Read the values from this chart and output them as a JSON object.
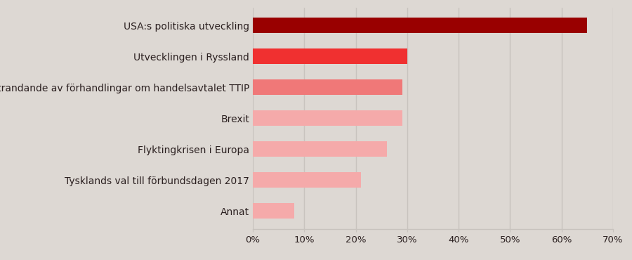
{
  "categories": [
    "Annat",
    "Tysklands val till förbundsdagen 2017",
    "Flyktingkrisen i Europa",
    "Brexit",
    "Möjligt strandande av förhandlingar om handelsavtalet TTIP",
    "Utvecklingen i Ryssland",
    "USA:s politiska utveckling"
  ],
  "values": [
    0.08,
    0.21,
    0.26,
    0.29,
    0.29,
    0.3,
    0.65
  ],
  "bar_colors": [
    "#f5aaaa",
    "#f5aaaa",
    "#f5aaaa",
    "#f5aaaa",
    "#f07878",
    "#f03030",
    "#990000"
  ],
  "background_color": "#ddd8d3",
  "xlim": [
    0,
    0.7
  ],
  "xticks": [
    0.0,
    0.1,
    0.2,
    0.3,
    0.4,
    0.5,
    0.6,
    0.7
  ],
  "grid_color": "#c8c3be",
  "bar_height": 0.5,
  "label_fontsize": 10,
  "tick_fontsize": 9.5,
  "text_color": "#2b2020"
}
